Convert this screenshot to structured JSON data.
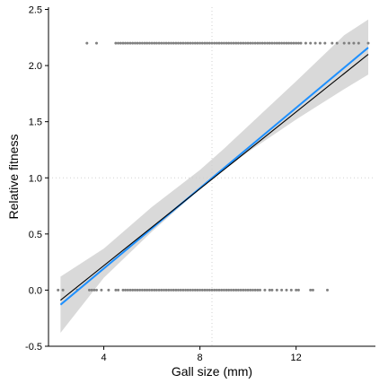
{
  "chart_data": {
    "type": "scatter",
    "xlabel": "Gall size (mm)",
    "ylabel": "Relative fitness",
    "xlim": [
      1.7,
      15.3
    ],
    "ylim": [
      -0.5,
      2.52
    ],
    "x_ticks": [
      4,
      8,
      12
    ],
    "x_tick_labels": [
      "4",
      "8",
      "12"
    ],
    "y_ticks": [
      -0.5,
      0.0,
      0.5,
      1.0,
      1.5,
      2.0,
      2.5
    ],
    "y_tick_labels": [
      "-0.5",
      "0.0",
      "0.5",
      "1.0",
      "1.5",
      "2.0",
      "2.5"
    ],
    "grid": false,
    "reference_lines": {
      "x": 8.5,
      "y": 1.0,
      "style": "dotted"
    },
    "points_top": {
      "y": 2.2,
      "x": [
        3.3,
        3.7,
        4.5,
        4.6,
        4.7,
        4.8,
        4.9,
        5.0,
        5.1,
        5.2,
        5.3,
        5.4,
        5.5,
        5.6,
        5.7,
        5.8,
        5.9,
        6.0,
        6.1,
        6.2,
        6.3,
        6.4,
        6.5,
        6.6,
        6.7,
        6.8,
        6.9,
        7.0,
        7.1,
        7.2,
        7.3,
        7.4,
        7.5,
        7.6,
        7.7,
        7.8,
        7.9,
        8.0,
        8.1,
        8.2,
        8.3,
        8.4,
        8.5,
        8.6,
        8.7,
        8.8,
        8.9,
        9.0,
        9.1,
        9.2,
        9.3,
        9.4,
        9.5,
        9.6,
        9.7,
        9.8,
        9.9,
        10.0,
        10.1,
        10.2,
        10.3,
        10.4,
        10.5,
        10.6,
        10.7,
        10.8,
        10.9,
        11.0,
        11.1,
        11.2,
        11.3,
        11.4,
        11.5,
        11.6,
        11.7,
        11.8,
        11.9,
        12.0,
        12.1,
        12.2,
        12.4,
        12.6,
        12.8,
        13.0,
        13.2,
        13.5,
        13.7,
        14.0,
        14.2,
        14.4,
        14.6,
        15.0
      ]
    },
    "points_bottom": {
      "y": 0.0,
      "x": [
        2.1,
        2.3,
        2.9,
        3.4,
        3.5,
        3.6,
        3.7,
        3.9,
        4.2,
        4.5,
        4.6,
        4.8,
        4.9,
        5.0,
        5.1,
        5.2,
        5.3,
        5.4,
        5.5,
        5.6,
        5.7,
        5.8,
        5.9,
        6.0,
        6.1,
        6.2,
        6.3,
        6.4,
        6.5,
        6.6,
        6.7,
        6.8,
        6.9,
        7.0,
        7.1,
        7.2,
        7.3,
        7.4,
        7.5,
        7.6,
        7.7,
        7.8,
        7.9,
        8.0,
        8.1,
        8.2,
        8.3,
        8.4,
        8.5,
        8.6,
        8.7,
        8.8,
        8.9,
        9.0,
        9.1,
        9.2,
        9.3,
        9.4,
        9.5,
        9.6,
        9.7,
        9.8,
        9.9,
        10.0,
        10.1,
        10.2,
        10.3,
        10.4,
        10.5,
        10.7,
        10.9,
        11.0,
        11.2,
        11.4,
        11.6,
        11.8,
        12.0,
        12.1,
        12.6,
        12.7,
        13.3
      ]
    },
    "series": [
      {
        "kind": "line",
        "color": "#1e90ff",
        "x": [
          2.2,
          15.0
        ],
        "y": [
          -0.13,
          2.16
        ]
      },
      {
        "kind": "line",
        "color": "#000000",
        "x": [
          2.2,
          15.0
        ],
        "y": [
          -0.09,
          2.1
        ]
      },
      {
        "kind": "confidence_band",
        "color": "#d9d9d9",
        "x": [
          2.2,
          4.0,
          6.0,
          8.0,
          9.0,
          10.0,
          12.0,
          14.0,
          15.0
        ],
        "lower": [
          -0.38,
          0.11,
          0.52,
          0.9,
          1.07,
          1.23,
          1.52,
          1.79,
          1.92
        ],
        "upper": [
          0.12,
          0.37,
          0.74,
          1.07,
          1.26,
          1.46,
          1.86,
          2.27,
          2.41
        ]
      }
    ],
    "colors": {
      "points": "#808080",
      "fit_line": "#1e90ff",
      "reference_line": "#000000",
      "band": "#d9d9d9",
      "dotted_ref": "#d0d0d0"
    }
  }
}
